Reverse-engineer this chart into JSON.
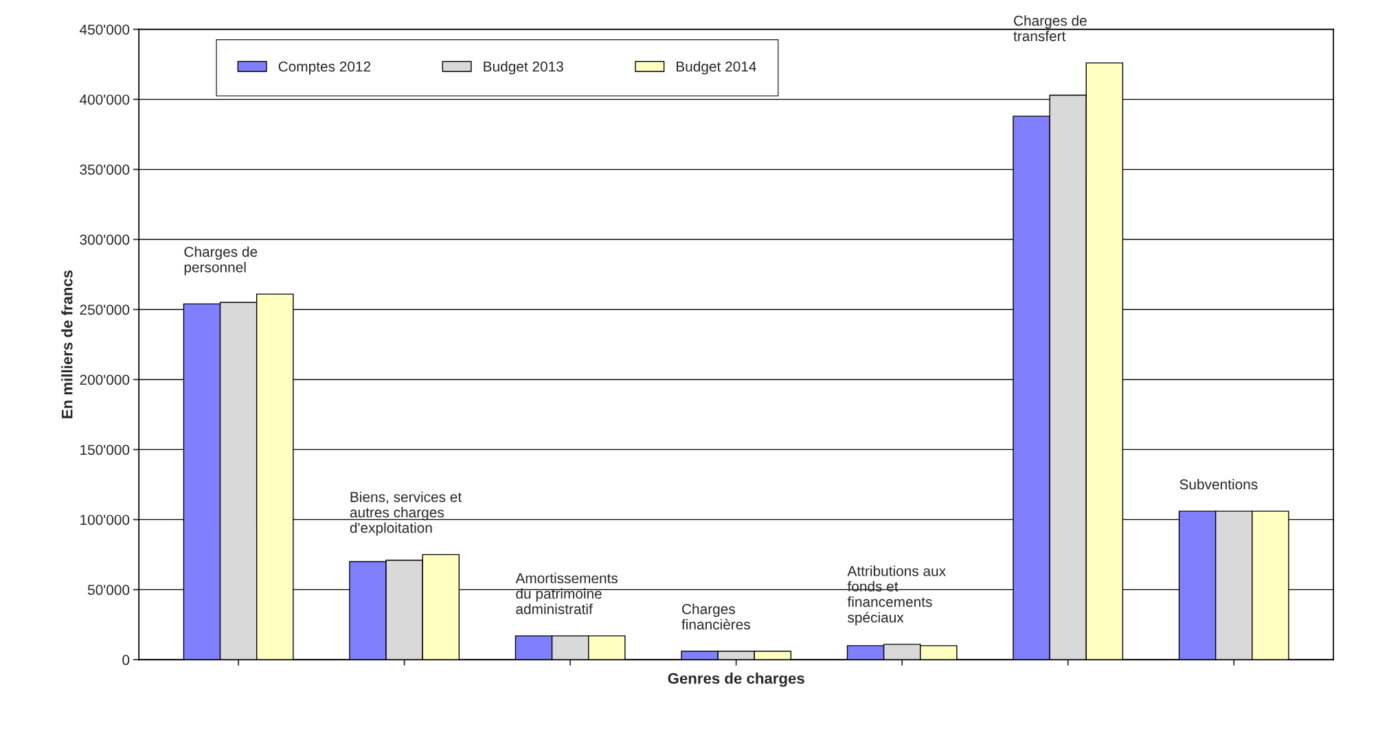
{
  "chart_data": {
    "type": "bar",
    "xlabel": "Genres de charges",
    "ylabel": "En milliers de francs",
    "categories": [
      "Charges de\npersonnel",
      "Biens, services et\nautres charges\nd'exploitation",
      "Amortissements\ndu patrimoine\nadministratif",
      "Charges\nfinancières",
      "Attributions aux\nfonds et\nfinancements\nspéciaux",
      "Charges de\ntransfert",
      "Subventions"
    ],
    "series": [
      {
        "name": "Comptes 2012",
        "color": "#8080ff",
        "values": [
          254000,
          70000,
          17000,
          6000,
          10000,
          388000,
          106000
        ]
      },
      {
        "name": "Budget 2013",
        "color": "#d9d9d9",
        "values": [
          255000,
          71000,
          17000,
          6000,
          11000,
          403000,
          106000
        ]
      },
      {
        "name": "Budget 2014",
        "color": "#ffffc0",
        "values": [
          261000,
          75000,
          17000,
          6000,
          10000,
          426000,
          106000
        ]
      }
    ],
    "ylim": [
      0,
      450000
    ],
    "yticks": [
      {
        "value": 0,
        "label": "0"
      },
      {
        "value": 50000,
        "label": "50'000"
      },
      {
        "value": 100000,
        "label": "100'000"
      },
      {
        "value": 150000,
        "label": "150'000"
      },
      {
        "value": 200000,
        "label": "200'000"
      },
      {
        "value": 250000,
        "label": "250'000"
      },
      {
        "value": 300000,
        "label": "300'000"
      },
      {
        "value": 350000,
        "label": "350'000"
      },
      {
        "value": 400000,
        "label": "400'000"
      },
      {
        "value": 450000,
        "label": "450'000"
      }
    ],
    "grid": "y",
    "legend": "top"
  }
}
